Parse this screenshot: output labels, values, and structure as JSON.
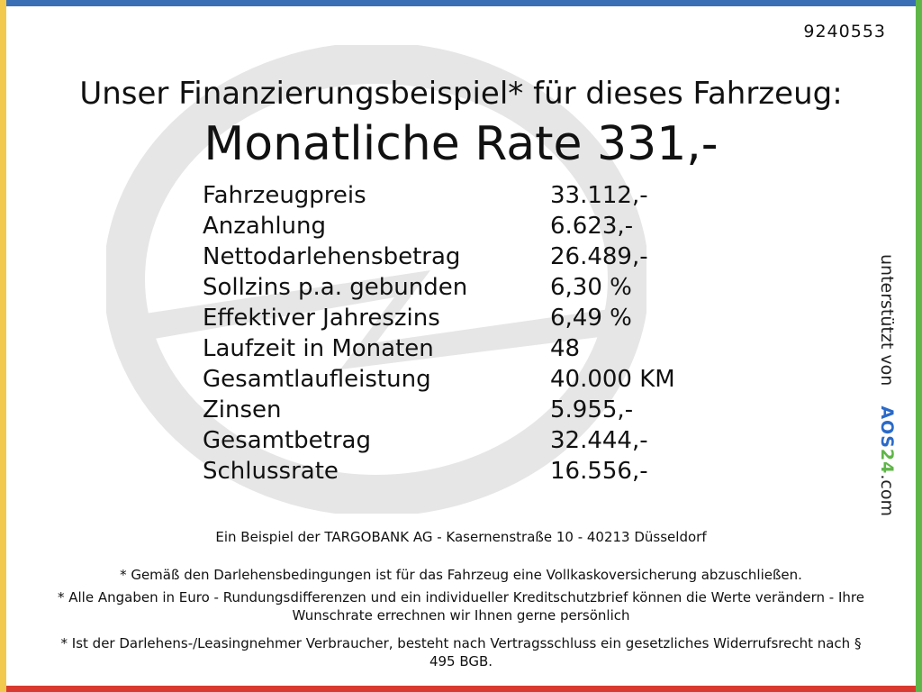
{
  "colors": {
    "top_bar": "#3a6fb5",
    "left_bar": "#f2c94c",
    "right_bar": "#5fb548",
    "bottom_bar": "#d93a2f",
    "watermark": "#e6e6e6",
    "brand_blue": "#2a6ac8",
    "brand_green": "#5fb548",
    "brand_yellow": "#e8b92d"
  },
  "reference_number": "9240553",
  "headline": "Unser Finanzierungsbeispiel* für dieses Fahrzeug:",
  "monthly_rate": "Monatliche Rate 331,-",
  "details": [
    {
      "label": "Fahrzeugpreis",
      "value": "33.112,-"
    },
    {
      "label": "Anzahlung",
      "value": "6.623,-"
    },
    {
      "label": "Nettodarlehensbetrag",
      "value": "26.489,-"
    },
    {
      "label": "Sollzins p.a. gebunden",
      "value": "6,30 %"
    },
    {
      "label": "Effektiver Jahreszins",
      "value": "6,49 %"
    },
    {
      "label": "Laufzeit in Monaten",
      "value": "48"
    },
    {
      "label": "Gesamtlaufleistung",
      "value": "40.000 KM"
    },
    {
      "label": "Zinsen",
      "value": "5.955,-"
    },
    {
      "label": "Gesamtbetrag",
      "value": "32.444,-"
    },
    {
      "label": "Schlussrate",
      "value": "16.556,-"
    }
  ],
  "bank_line": "Ein Beispiel der TARGOBANK AG - Kasernenstraße 10 - 40213 Düsseldorf",
  "notes": {
    "note1": "* Gemäß den Darlehensbedingungen ist für das Fahrzeug eine Vollkaskoversicherung abzuschließen.",
    "note2": "* Alle Angaben in Euro - Rundungsdifferenzen und ein individueller Kreditschutzbrief können die Werte verändern - Ihre Wunschrate errechnen wir Ihnen gerne persönlich",
    "note3": "* Ist der Darlehens-/Leasingnehmer Verbraucher, besteht nach Vertragsschluss ein gesetzliches Widerrufsrecht nach § 495 BGB."
  },
  "sponsor": {
    "prefix": "unterstützt von",
    "brand_a": "AOS",
    "brand_b": "24",
    "suffix": ".com"
  },
  "watermark_icon": "opel-blitz-logo-icon"
}
